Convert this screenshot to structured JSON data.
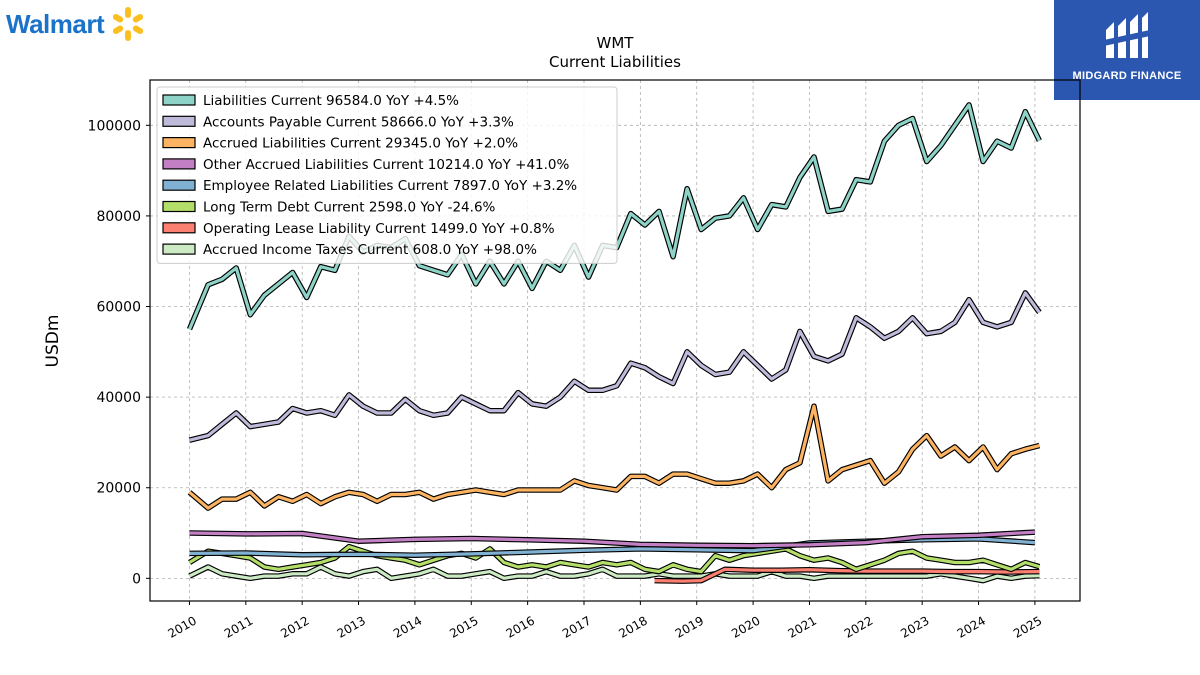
{
  "branding": {
    "company_logo_text": "Walmart",
    "company_logo_color": "#1a73c9",
    "spark_color": "#fbbf1f",
    "watermark_text": "MIDGARD FINANCE",
    "watermark_bg": "#2b57b0"
  },
  "chart_data": {
    "type": "line",
    "title": "WMT",
    "subtitle": "Current  Liabilities",
    "ylabel": "USDm",
    "xlabel": "",
    "ylim": [
      -5000,
      110000
    ],
    "xlim": [
      2009.3,
      2025.8
    ],
    "yticks": [
      0,
      20000,
      40000,
      60000,
      80000,
      100000
    ],
    "xticks": [
      "2010",
      "2011",
      "2012",
      "2013",
      "2014",
      "2015",
      "2016",
      "2017",
      "2018",
      "2019",
      "2020",
      "2021",
      "2022",
      "2023",
      "2024",
      "2025"
    ],
    "grid": true,
    "legend_position": "top-left",
    "series": [
      {
        "name": "Liabilities Current",
        "legend": "Liabilities Current  96584.0 YoY +4.5%",
        "color": "#8dd3c7",
        "x": [
          2010.0,
          2010.33,
          2010.58,
          2010.83,
          2011.08,
          2011.33,
          2011.58,
          2011.83,
          2012.08,
          2012.33,
          2012.58,
          2012.83,
          2013.08,
          2013.33,
          2013.58,
          2013.83,
          2014.08,
          2014.33,
          2014.58,
          2014.83,
          2015.08,
          2015.33,
          2015.58,
          2015.83,
          2016.08,
          2016.33,
          2016.58,
          2016.83,
          2017.08,
          2017.33,
          2017.58,
          2017.83,
          2018.08,
          2018.33,
          2018.58,
          2018.83,
          2019.08,
          2019.33,
          2019.58,
          2019.83,
          2020.08,
          2020.33,
          2020.58,
          2020.83,
          2021.08,
          2021.33,
          2021.58,
          2021.83,
          2022.08,
          2022.33,
          2022.58,
          2022.83,
          2023.08,
          2023.33,
          2023.58,
          2023.83,
          2024.08,
          2024.33,
          2024.58,
          2024.83,
          2025.08
        ],
        "values": [
          55000,
          64800,
          66000,
          68500,
          58200,
          62500,
          65000,
          67500,
          62000,
          68800,
          68000,
          75500,
          72000,
          73500,
          73000,
          75000,
          69000,
          68000,
          67000,
          71500,
          65000,
          70000,
          65000,
          70000,
          64000,
          70000,
          68000,
          73500,
          66500,
          73500,
          73000,
          80500,
          78000,
          81000,
          71000,
          86000,
          77000,
          79500,
          80000,
          84000,
          77000,
          82500,
          82000,
          88500,
          93000,
          81000,
          81500,
          88000,
          87500,
          96500,
          100000,
          101500,
          92000,
          95500,
          100000,
          104500,
          92000,
          96500,
          95000,
          103000,
          96600
        ]
      },
      {
        "name": "Accounts Payable Current",
        "legend": "Accounts Payable Current  58666.0 YoY +3.3%",
        "color": "#bebada",
        "x": [
          2010.0,
          2010.33,
          2010.58,
          2010.83,
          2011.08,
          2011.33,
          2011.58,
          2011.83,
          2012.08,
          2012.33,
          2012.58,
          2012.83,
          2013.08,
          2013.33,
          2013.58,
          2013.83,
          2014.08,
          2014.33,
          2014.58,
          2014.83,
          2015.08,
          2015.33,
          2015.58,
          2015.83,
          2016.08,
          2016.33,
          2016.58,
          2016.83,
          2017.08,
          2017.33,
          2017.58,
          2017.83,
          2018.08,
          2018.33,
          2018.58,
          2018.83,
          2019.08,
          2019.33,
          2019.58,
          2019.83,
          2020.08,
          2020.33,
          2020.58,
          2020.83,
          2021.08,
          2021.33,
          2021.58,
          2021.83,
          2022.08,
          2022.33,
          2022.58,
          2022.83,
          2023.08,
          2023.33,
          2023.58,
          2023.83,
          2024.08,
          2024.33,
          2024.58,
          2024.83,
          2025.08
        ],
        "values": [
          30500,
          31500,
          34000,
          36500,
          33500,
          34000,
          34500,
          37500,
          36500,
          37000,
          36000,
          40500,
          38000,
          36500,
          36500,
          39500,
          37000,
          36000,
          36500,
          40000,
          38500,
          37000,
          37000,
          41000,
          38500,
          38000,
          40000,
          43500,
          41500,
          41500,
          42500,
          47500,
          46500,
          44500,
          43000,
          50000,
          47000,
          45000,
          45500,
          50000,
          47000,
          44000,
          46000,
          54500,
          49000,
          48000,
          49500,
          57500,
          55500,
          53000,
          54500,
          57500,
          54000,
          54500,
          56500,
          61500,
          56500,
          55500,
          56500,
          63000,
          58700
        ]
      },
      {
        "name": "Accrued Liabilities Current",
        "legend": "Accrued Liabilities Current  29345.0 YoY +2.0%",
        "color": "#fdb462",
        "x": [
          2010.0,
          2010.33,
          2010.58,
          2010.83,
          2011.08,
          2011.33,
          2011.58,
          2011.83,
          2012.08,
          2012.33,
          2012.58,
          2012.83,
          2013.08,
          2013.33,
          2013.58,
          2013.83,
          2014.08,
          2014.33,
          2014.58,
          2014.83,
          2015.08,
          2015.33,
          2015.58,
          2015.83,
          2016.08,
          2016.33,
          2016.58,
          2016.83,
          2017.08,
          2017.33,
          2017.58,
          2017.83,
          2018.08,
          2018.33,
          2018.58,
          2018.83,
          2019.08,
          2019.33,
          2019.58,
          2019.83,
          2020.08,
          2020.33,
          2020.58,
          2020.83,
          2021.08,
          2021.33,
          2021.58,
          2021.83,
          2022.08,
          2022.33,
          2022.58,
          2022.83,
          2023.08,
          2023.33,
          2023.58,
          2023.83,
          2024.08,
          2024.33,
          2024.58,
          2024.83,
          2025.08
        ],
        "values": [
          19000,
          15500,
          17500,
          17500,
          19000,
          16000,
          18000,
          17000,
          18500,
          16500,
          18000,
          19000,
          18500,
          17000,
          18500,
          18500,
          19000,
          17500,
          18500,
          19000,
          19500,
          19000,
          18500,
          19500,
          19500,
          19500,
          19500,
          21500,
          20500,
          20000,
          19500,
          22500,
          22500,
          21000,
          23000,
          23000,
          22000,
          21000,
          21000,
          21500,
          23000,
          20000,
          24000,
          25500,
          38000,
          21500,
          24000,
          25000,
          26000,
          21000,
          23500,
          28500,
          31500,
          27000,
          29000,
          26000,
          29000,
          24000,
          27500,
          28500,
          29300
        ]
      },
      {
        "name": "Other Accrued Liabilities Current",
        "legend": "Other Accrued Liabilities Current  10214.0 YoY +41.0%",
        "color": "#c27fc4",
        "x": [
          2010.0,
          2011.0,
          2012.0,
          2013.0,
          2014.0,
          2015.0,
          2016.0,
          2017.0,
          2018.0,
          2019.0,
          2020.0,
          2021.0,
          2022.0,
          2023.0,
          2024.0,
          2025.0
        ],
        "values": [
          10000,
          9800,
          9900,
          8200,
          8600,
          8800,
          8500,
          8200,
          7500,
          7300,
          7200,
          7400,
          7900,
          9200,
          9500,
          10200
        ]
      },
      {
        "name": "Employee Related Liabilities Current",
        "legend": "Employee Related Liabilities Current  7897.0 YoY +3.2%",
        "color": "#80b1d3",
        "x": [
          2010.0,
          2011.0,
          2012.0,
          2013.0,
          2014.0,
          2015.0,
          2016.0,
          2017.0,
          2018.0,
          2019.0,
          2020.0,
          2021.0,
          2022.0,
          2023.0,
          2024.0,
          2025.0
        ],
        "values": [
          5500,
          5600,
          5200,
          5300,
          5100,
          5400,
          5800,
          6200,
          6500,
          6300,
          6100,
          7800,
          8200,
          8500,
          8700,
          7900
        ]
      },
      {
        "name": "Long Term Debt Current",
        "legend": "Long Term Debt Current  2598.0 YoY -24.6%",
        "color": "#b3de69",
        "x": [
          2010.0,
          2010.33,
          2010.58,
          2010.83,
          2011.08,
          2011.33,
          2011.58,
          2011.83,
          2012.08,
          2012.33,
          2012.58,
          2012.83,
          2013.08,
          2013.33,
          2013.58,
          2013.83,
          2014.08,
          2014.33,
          2014.58,
          2014.83,
          2015.08,
          2015.33,
          2015.58,
          2015.83,
          2016.08,
          2016.33,
          2016.58,
          2016.83,
          2017.08,
          2017.33,
          2017.58,
          2017.83,
          2018.08,
          2018.33,
          2018.58,
          2018.83,
          2019.08,
          2019.33,
          2019.58,
          2019.83,
          2020.08,
          2020.33,
          2020.58,
          2020.83,
          2021.08,
          2021.33,
          2021.58,
          2021.83,
          2022.08,
          2022.33,
          2022.58,
          2022.83,
          2023.08,
          2023.33,
          2023.58,
          2023.83,
          2024.08,
          2024.33,
          2024.58,
          2024.83,
          2025.08
        ],
        "values": [
          3500,
          6000,
          5500,
          5000,
          4500,
          2500,
          2000,
          2500,
          3000,
          3500,
          4500,
          7000,
          6000,
          5000,
          4500,
          4000,
          3000,
          4000,
          5000,
          5500,
          4500,
          6500,
          3500,
          2500,
          3000,
          2500,
          3500,
          3000,
          2500,
          3500,
          3000,
          3500,
          2000,
          1500,
          3000,
          2000,
          1500,
          5000,
          4000,
          5000,
          5500,
          6000,
          6500,
          5000,
          4000,
          4500,
          3500,
          2000,
          3000,
          4000,
          5500,
          6000,
          4500,
          4000,
          3500,
          3500,
          4000,
          3000,
          2000,
          3500,
          2600
        ]
      },
      {
        "name": "Operating Lease Liability Current",
        "legend": "Operating Lease Liability Current  1499.0 YoY +0.8%",
        "color": "#fb8072",
        "x": [
          2018.25,
          2018.75,
          2019.08,
          2019.5,
          2020.0,
          2020.5,
          2021.0,
          2021.5,
          2022.0,
          2022.5,
          2023.0,
          2023.5,
          2024.0,
          2024.5,
          2025.08
        ],
        "values": [
          -500,
          -600,
          -500,
          2000,
          1800,
          1800,
          1900,
          1700,
          1600,
          1600,
          1600,
          1500,
          1500,
          1400,
          1500
        ]
      },
      {
        "name": "Accrued Income Taxes Current",
        "legend": "Accrued Income Taxes Current  608.0 YoY +98.0%",
        "color": "#ccebc5",
        "x": [
          2010.0,
          2010.33,
          2010.58,
          2010.83,
          2011.08,
          2011.33,
          2011.58,
          2011.83,
          2012.08,
          2012.33,
          2012.58,
          2012.83,
          2013.08,
          2013.33,
          2013.58,
          2013.83,
          2014.08,
          2014.33,
          2014.58,
          2014.83,
          2015.08,
          2015.33,
          2015.58,
          2015.83,
          2016.08,
          2016.33,
          2016.58,
          2016.83,
          2017.08,
          2017.33,
          2017.58,
          2017.83,
          2018.08,
          2018.33,
          2018.58,
          2018.83,
          2019.08,
          2019.33,
          2019.58,
          2019.83,
          2020.08,
          2020.33,
          2020.58,
          2020.83,
          2021.08,
          2021.33,
          2021.58,
          2021.83,
          2022.08,
          2022.33,
          2022.58,
          2022.83,
          2023.08,
          2023.33,
          2023.58,
          2023.83,
          2024.08,
          2024.33,
          2024.58,
          2024.83,
          2025.08
        ],
        "values": [
          500,
          2500,
          1000,
          500,
          0,
          500,
          500,
          1000,
          1000,
          2500,
          1000,
          500,
          1500,
          2000,
          0,
          500,
          1000,
          2000,
          500,
          500,
          1000,
          1500,
          0,
          500,
          500,
          1500,
          500,
          500,
          1000,
          2000,
          500,
          500,
          500,
          1000,
          500,
          500,
          500,
          1000,
          500,
          500,
          500,
          1500,
          500,
          500,
          0,
          500,
          500,
          500,
          500,
          500,
          500,
          500,
          500,
          1000,
          500,
          0,
          -500,
          500,
          0,
          500,
          600
        ]
      }
    ]
  }
}
